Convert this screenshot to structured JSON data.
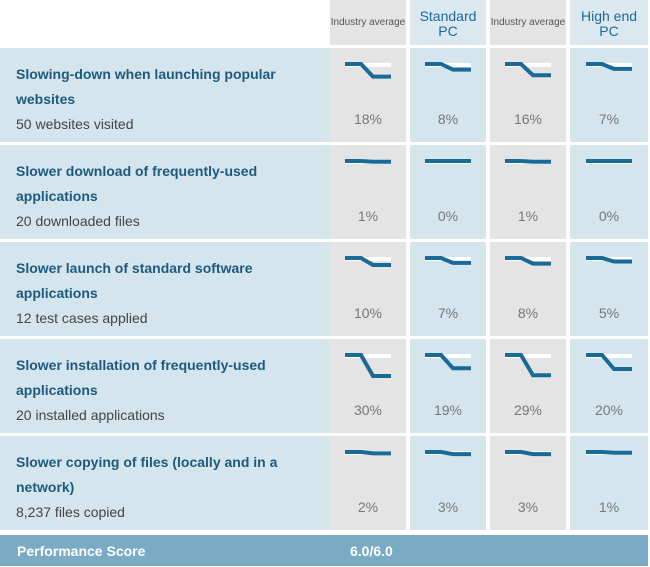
{
  "columns": [
    {
      "label": "Industry average",
      "style": "small"
    },
    {
      "label": "Standard PC",
      "style": "big"
    },
    {
      "label": "Industry average",
      "style": "small"
    },
    {
      "label": "High end PC",
      "style": "big"
    }
  ],
  "chart_data": {
    "type": "table",
    "rows": [
      {
        "title": "Slowing-down when launching popular websites",
        "subtitle": "50 websites visited",
        "values": [
          "18%",
          "8%",
          "16%",
          "7%"
        ]
      },
      {
        "title": "Slower download of frequently-used applications",
        "subtitle": "20 downloaded files",
        "values": [
          "1%",
          "0%",
          "1%",
          "0%"
        ]
      },
      {
        "title": "Slower launch of standard software applications",
        "subtitle": "12 test cases applied",
        "values": [
          "10%",
          "7%",
          "8%",
          "5%"
        ]
      },
      {
        "title": "Slower installation of frequently-used applications",
        "subtitle": "20 installed applications",
        "values": [
          "30%",
          "19%",
          "29%",
          "20%"
        ]
      },
      {
        "title": "Slower copying of files (locally and in a network)",
        "subtitle": "8,237 files copied",
        "values": [
          "2%",
          "3%",
          "3%",
          "1%"
        ]
      }
    ],
    "score_label": "Performance Score",
    "score_value": "6.0/6.0"
  },
  "colors": {
    "spark_line": "#1a6a98",
    "baseline": "#ffffff"
  }
}
